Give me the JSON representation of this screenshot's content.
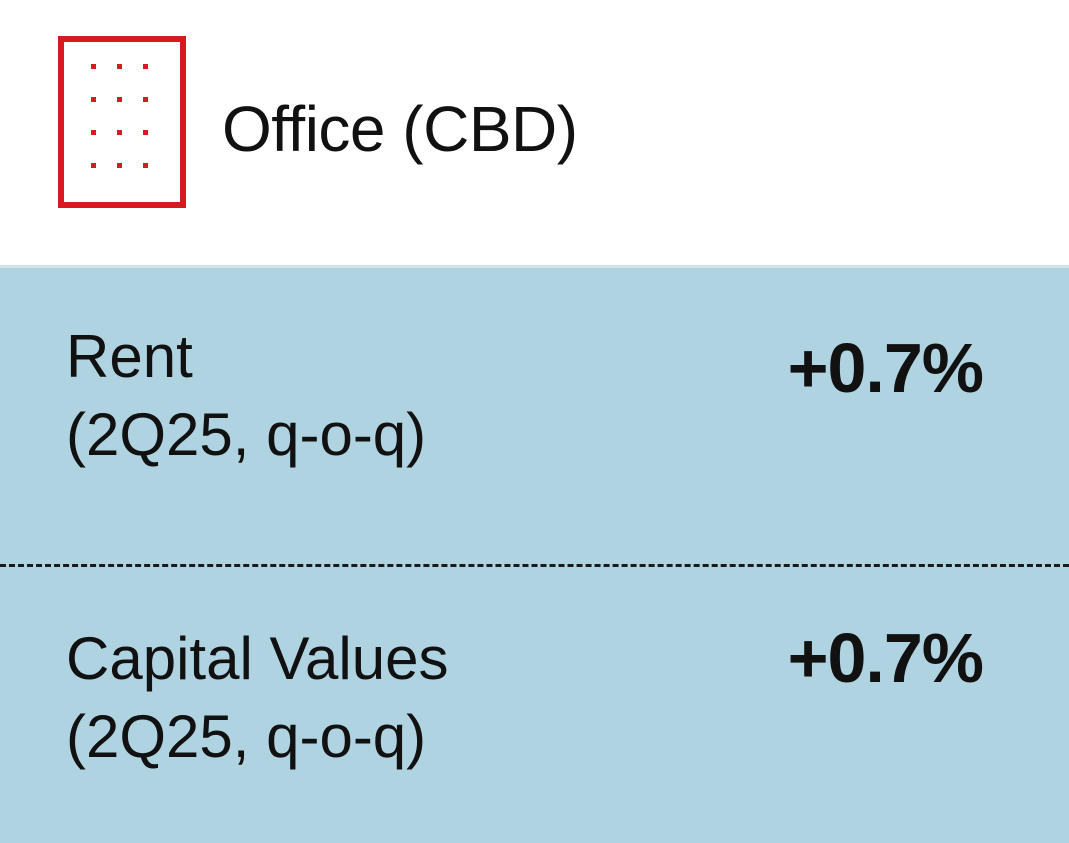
{
  "header": {
    "icon": "building-icon",
    "accent_color": "#d71920",
    "title": "Office (CBD)"
  },
  "panel": {
    "background_color": "#afd3e0",
    "metrics": [
      {
        "label_line1": "Rent",
        "label_line2": "(2Q25, q-o-q)",
        "value": "+0.7%"
      },
      {
        "label_line1": "Capital Values",
        "label_line2": "(2Q25, q-o-q)",
        "value": "+0.7%"
      }
    ]
  }
}
